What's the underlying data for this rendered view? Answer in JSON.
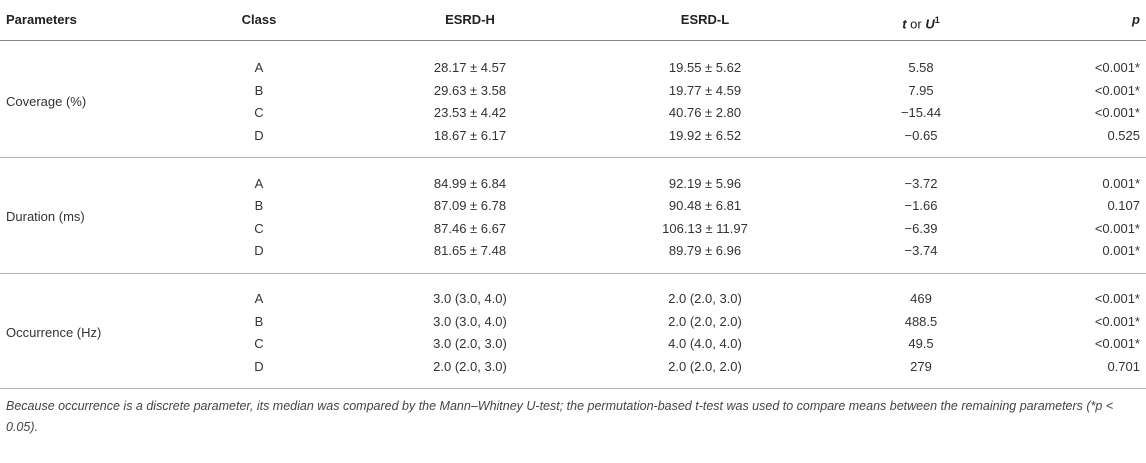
{
  "table": {
    "columns": [
      "Parameters",
      "Class",
      "ESRD-H",
      "ESRD-L",
      {
        "parts": [
          "t",
          " or ",
          "U",
          "1"
        ]
      },
      "p"
    ],
    "groups": [
      {
        "label": "Coverage (%)",
        "rows": [
          [
            "A",
            "28.17 ± 4.57",
            "19.55 ± 5.62",
            "5.58",
            "<0.001*"
          ],
          [
            "B",
            "29.63 ± 3.58",
            "19.77 ± 4.59",
            "7.95",
            "<0.001*"
          ],
          [
            "C",
            "23.53 ± 4.42",
            "40.76 ± 2.80",
            "−15.44",
            "<0.001*"
          ],
          [
            "D",
            "18.67 ± 6.17",
            "19.92 ± 6.52",
            "−0.65",
            "0.525"
          ]
        ]
      },
      {
        "label": "Duration (ms)",
        "rows": [
          [
            "A",
            "84.99 ± 6.84",
            "92.19 ± 5.96",
            "−3.72",
            "0.001*"
          ],
          [
            "B",
            "87.09 ± 6.78",
            "90.48 ± 6.81",
            "−1.66",
            "0.107"
          ],
          [
            "C",
            "87.46 ± 6.67",
            "106.13 ± 11.97",
            "−6.39",
            "<0.001*"
          ],
          [
            "D",
            "81.65 ± 7.48",
            "89.79 ± 6.96",
            "−3.74",
            "0.001*"
          ]
        ]
      },
      {
        "label": "Occurrence (Hz)",
        "rows": [
          [
            "A",
            "3.0 (3.0, 4.0)",
            "2.0 (2.0, 3.0)",
            "469",
            "<0.001*"
          ],
          [
            "B",
            "3.0 (3.0, 4.0)",
            "2.0 (2.0, 2.0)",
            "488.5",
            "<0.001*"
          ],
          [
            "C",
            "3.0 (2.0, 3.0)",
            "4.0 (4.0, 4.0)",
            "49.5",
            "<0.001*"
          ],
          [
            "D",
            "2.0 (2.0, 3.0)",
            "2.0 (2.0, 2.0)",
            "279",
            "0.701"
          ]
        ]
      }
    ],
    "footnote": "Because occurrence is a discrete parameter, its median was compared by the Mann–Whitney U-test; the permutation-based t-test was used to compare means between the remaining parameters (*p < 0.05)."
  }
}
